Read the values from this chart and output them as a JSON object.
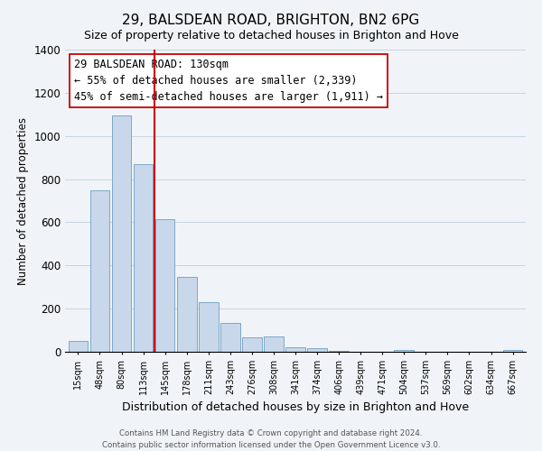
{
  "title": "29, BALSDEAN ROAD, BRIGHTON, BN2 6PG",
  "subtitle": "Size of property relative to detached houses in Brighton and Hove",
  "xlabel": "Distribution of detached houses by size in Brighton and Hove",
  "ylabel": "Number of detached properties",
  "categories": [
    "15sqm",
    "48sqm",
    "80sqm",
    "113sqm",
    "145sqm",
    "178sqm",
    "211sqm",
    "243sqm",
    "276sqm",
    "308sqm",
    "341sqm",
    "374sqm",
    "406sqm",
    "439sqm",
    "471sqm",
    "504sqm",
    "537sqm",
    "569sqm",
    "602sqm",
    "634sqm",
    "667sqm"
  ],
  "values": [
    50,
    750,
    1095,
    870,
    615,
    348,
    228,
    132,
    65,
    70,
    22,
    15,
    5,
    0,
    0,
    10,
    0,
    0,
    0,
    0,
    10
  ],
  "bar_color": "#c8d8ea",
  "bar_edge_color": "#7ca8c8",
  "vline_x_index": 3.5,
  "vline_color": "#cc0000",
  "annotation_line1": "29 BALSDEAN ROAD: 130sqm",
  "annotation_line2": "← 55% of detached houses are smaller (2,339)",
  "annotation_line3": "45% of semi-detached houses are larger (1,911) →",
  "annotation_box_color": "#ffffff",
  "annotation_box_edge": "#cc0000",
  "ylim": [
    0,
    1400
  ],
  "yticks": [
    0,
    200,
    400,
    600,
    800,
    1000,
    1200,
    1400
  ],
  "footer1": "Contains HM Land Registry data © Crown copyright and database right 2024.",
  "footer2": "Contains public sector information licensed under the Open Government Licence v3.0.",
  "bg_color": "#f0f4f8",
  "grid_color": "#c8d4e0",
  "title_fontsize": 11,
  "subtitle_fontsize": 9,
  "annotation_fontsize": 8.5,
  "ylabel_fontsize": 8.5,
  "xlabel_fontsize": 9
}
